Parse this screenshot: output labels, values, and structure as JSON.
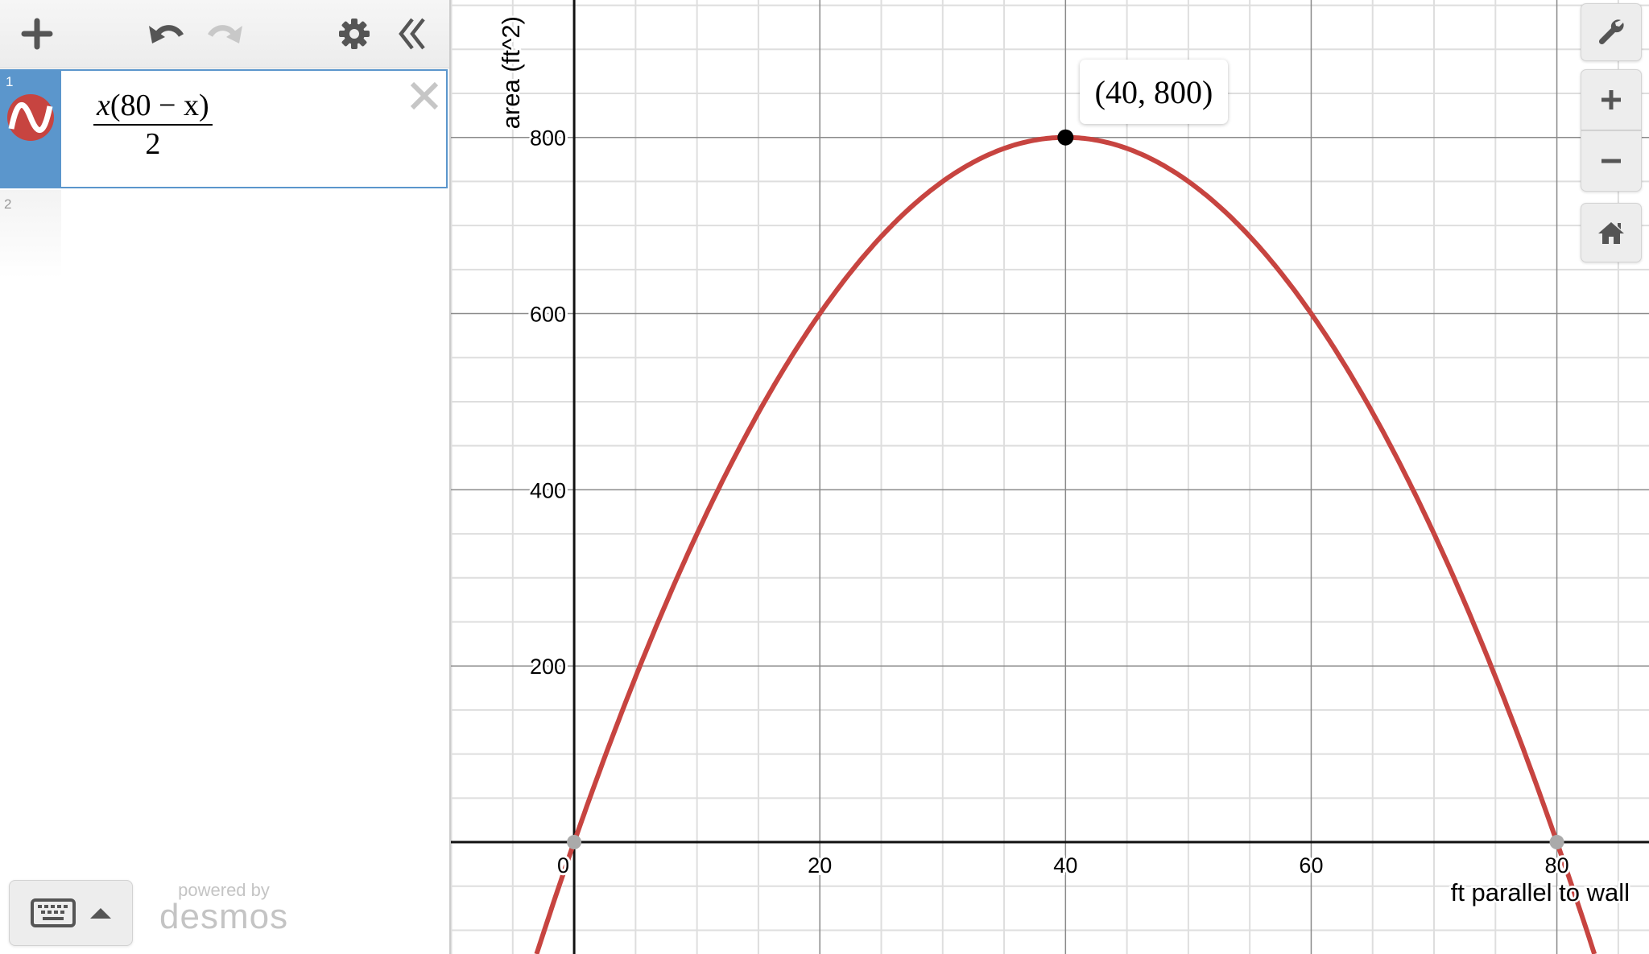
{
  "toolbar": {
    "icons": [
      "plus-icon",
      "undo-icon",
      "redo-icon",
      "gear-icon",
      "double-chevron-left-icon"
    ]
  },
  "expressions": [
    {
      "index": "1",
      "numerator_x": "x",
      "numerator_rest": "(80 − x)",
      "denominator": "2",
      "color": "#c74440",
      "icon": "sine-wave-icon"
    },
    {
      "index": "2"
    }
  ],
  "footer": {
    "powered_by": "powered by",
    "brand": "desmos"
  },
  "graph_controls": {
    "icons": [
      "wrench-icon",
      "zoom-in-icon",
      "zoom-out-icon",
      "home-icon"
    ]
  },
  "point_label": "(40, 800)",
  "chart_data": {
    "type": "line",
    "function": "x(80-x)/2",
    "xlabel": "ft parallel to wall",
    "ylabel": "area (ft^2)",
    "xlim": [
      -10.1,
      87.5
    ],
    "ylim": [
      -127,
      956
    ],
    "x_ticks": [
      0,
      20,
      40,
      60,
      80
    ],
    "y_ticks": [
      200,
      400,
      600,
      800
    ],
    "x_minor_step": 5,
    "y_minor_step": 50,
    "grid": true,
    "line_color": "#c74440",
    "points": [
      {
        "x": 40,
        "y": 800,
        "style": "black",
        "labeled": true
      },
      {
        "x": 0,
        "y": 0,
        "style": "gray"
      },
      {
        "x": 80,
        "y": 0,
        "style": "gray"
      }
    ]
  }
}
